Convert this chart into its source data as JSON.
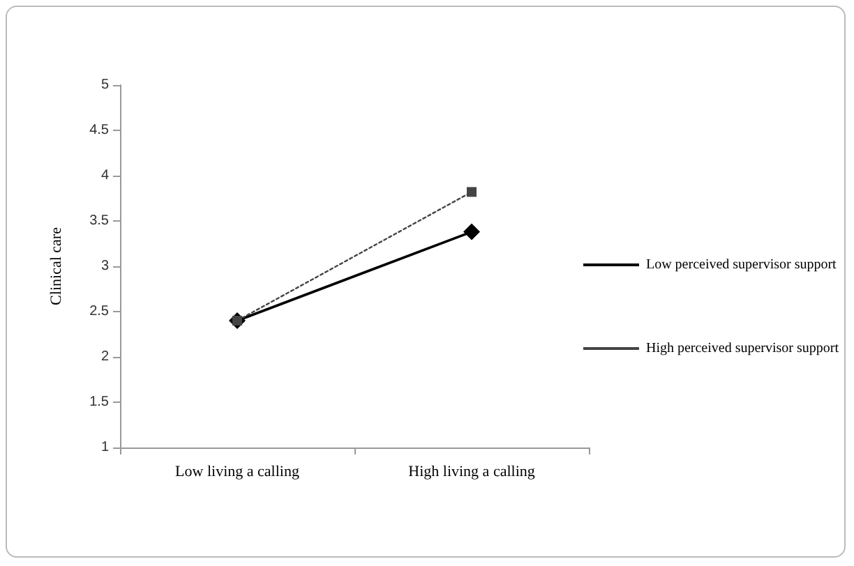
{
  "chart_data": {
    "type": "line",
    "ylabel": "Clinical care",
    "categories": [
      "Low living a calling",
      "High living a calling"
    ],
    "series": [
      {
        "name": "Low perceived supervisor support",
        "color": "#000000",
        "values": [
          2.4,
          3.38
        ],
        "marker": "diamond",
        "line_style": "solid"
      },
      {
        "name": "High perceived supervisor support",
        "color": "#444444",
        "values": [
          2.4,
          3.82
        ],
        "marker": "square",
        "line_style": "dotted"
      }
    ],
    "ylim": [
      1,
      5
    ],
    "yticks": [
      1,
      1.5,
      2,
      2.5,
      3,
      3.5,
      4,
      4.5,
      5
    ],
    "grid": false,
    "legend": "right"
  }
}
